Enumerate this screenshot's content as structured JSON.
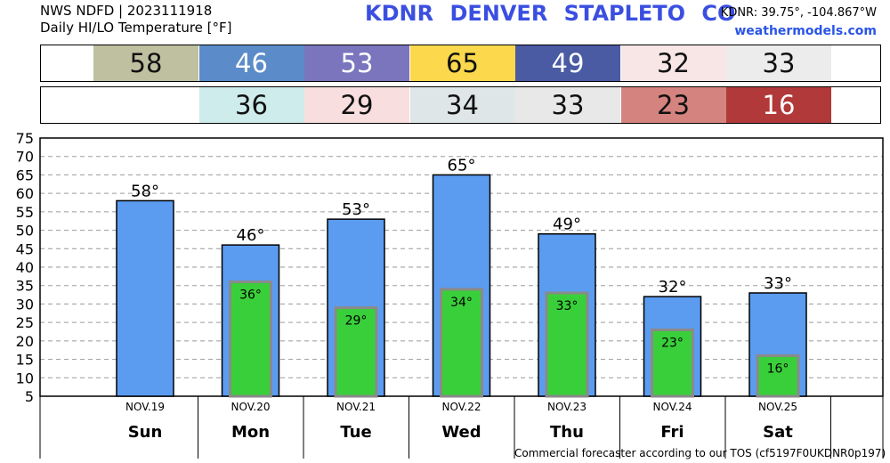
{
  "header": {
    "line1": "NWS NDFD | 2023111918",
    "line2": "Daily HI/LO Temperature [°F]",
    "title": "KDNR   DENVER STAPLETO CO",
    "coords": "KDNR: 39.75°, -104.867°W",
    "site": "weathermodels.com"
  },
  "hi_strip": [
    {
      "value": "58",
      "color": "#bfc0a0",
      "text_color": "#111111"
    },
    {
      "value": "46",
      "color": "#5b8cc9",
      "text_color": "#ffffff"
    },
    {
      "value": "53",
      "color": "#7a75bd",
      "text_color": "#ffffff"
    },
    {
      "value": "65",
      "color": "#fbd84c",
      "text_color": "#111111"
    },
    {
      "value": "49",
      "color": "#4a5aa3",
      "text_color": "#ffffff"
    },
    {
      "value": "32",
      "color": "#f8e6e6",
      "text_color": "#111111"
    },
    {
      "value": "33",
      "color": "#ececec",
      "text_color": "#111111"
    }
  ],
  "lo_strip": [
    {
      "value": "36",
      "color": "#cdeceb",
      "text_color": "#111111"
    },
    {
      "value": "29",
      "color": "#f8dede",
      "text_color": "#111111"
    },
    {
      "value": "34",
      "color": "#dfe6e7",
      "text_color": "#111111"
    },
    {
      "value": "33",
      "color": "#e8e8e8",
      "text_color": "#111111"
    },
    {
      "value": "23",
      "color": "#d4837f",
      "text_color": "#111111"
    },
    {
      "value": "16",
      "color": "#b23939",
      "text_color": "#ffffff"
    }
  ],
  "chart_data": {
    "type": "bar",
    "categories": [
      "Sun",
      "Mon",
      "Tue",
      "Wed",
      "Thu",
      "Fri",
      "Sat"
    ],
    "dates": [
      "NOV.19",
      "NOV.20",
      "NOV.21",
      "NOV.22",
      "NOV.23",
      "NOV.24",
      "NOV.25"
    ],
    "series": [
      {
        "values": [
          58,
          46,
          53,
          65,
          49,
          32,
          33
        ],
        "labels": [
          "58°",
          "46°",
          "53°",
          "65°",
          "49°",
          "32°",
          "33°"
        ],
        "color": "#5b9cf0"
      },
      {
        "values": [
          null,
          36,
          29,
          34,
          33,
          23,
          16
        ],
        "labels": [
          "",
          "36°",
          "29°",
          "34°",
          "33°",
          "23°",
          "16°"
        ],
        "color": "#39cf3a"
      }
    ],
    "yticks": [
      "5",
      "10",
      "15",
      "20",
      "25",
      "30",
      "35",
      "40",
      "45",
      "50",
      "55",
      "60",
      "65",
      "70",
      "75"
    ],
    "ylim": [
      5,
      75
    ],
    "grid": true,
    "colors": {
      "hi_bar": "#5b9cf0",
      "lo_bar": "#39cf3a",
      "lo_border": "#8a8a8a",
      "grid": "#9a9a9a"
    }
  },
  "footer": "Commercial forecaster according to our TOS (cf5197F0UKDNR0p197)"
}
